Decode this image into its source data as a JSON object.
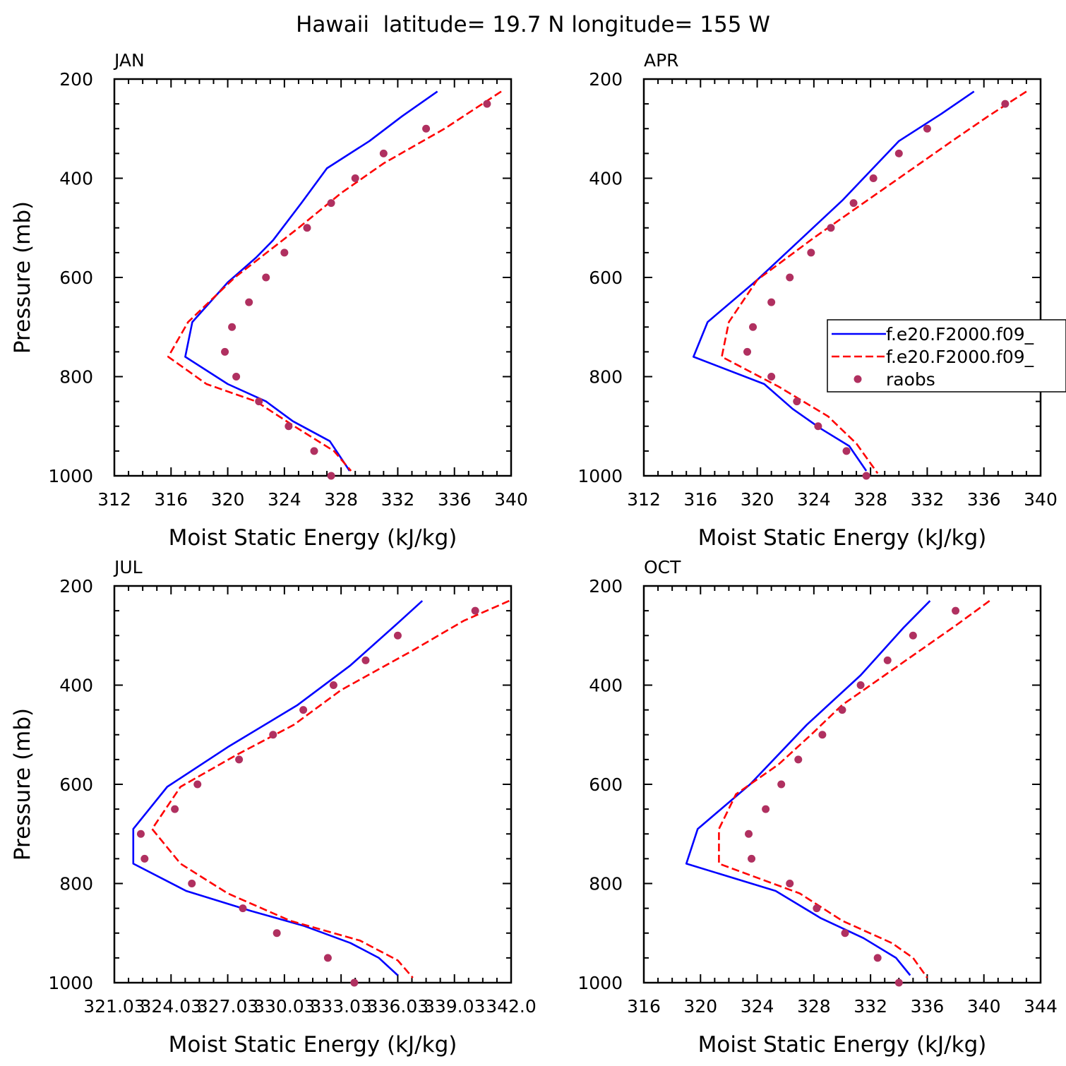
{
  "figure": {
    "title": "Hawaii  latitude= 19.7 N longitude= 155 W"
  },
  "colors": {
    "model_solid": "#0000ff",
    "model_dashed": "#ff0000",
    "raobs": "#b03060",
    "axes": "#000000"
  },
  "legend": {
    "entries": [
      {
        "label": "f.e20.F2000.f09_",
        "style": "solid",
        "color": "#0000ff"
      },
      {
        "label": "f.e20.F2000.f09_",
        "style": "dashed",
        "color": "#ff0000"
      },
      {
        "label": "raobs",
        "style": "dot",
        "color": "#b03060"
      }
    ]
  },
  "chart_data": [
    {
      "type": "line",
      "panel": "JAN",
      "title": "JAN",
      "xlabel": "Moist Static Energy (kJ/kg)",
      "ylabel": "Pressure (mb)",
      "xlim": [
        312,
        340
      ],
      "ylim": [
        1000,
        200
      ],
      "y_inverted": true,
      "xticks": [
        312,
        316,
        320,
        324,
        328,
        332,
        336,
        340
      ],
      "xtick_labels": [
        "312",
        "316",
        "320",
        "324",
        "328",
        "332",
        "336",
        "340"
      ],
      "yticks": [
        200,
        400,
        600,
        800,
        1000
      ],
      "ytick_labels": [
        "200",
        "400",
        "600",
        "800",
        "1000"
      ],
      "series": [
        {
          "style": "solid",
          "color": "#0000ff",
          "points": [
            [
              334.8,
              225
            ],
            [
              332.3,
              275
            ],
            [
              330.0,
              325
            ],
            [
              327.0,
              380
            ],
            [
              325.2,
              450
            ],
            [
              323.2,
              525
            ],
            [
              322.0,
              560
            ],
            [
              320.0,
              610
            ],
            [
              317.5,
              690
            ],
            [
              317.0,
              760
            ],
            [
              320.0,
              815
            ],
            [
              322.7,
              850
            ],
            [
              324.6,
              890
            ],
            [
              327.2,
              930
            ],
            [
              328.6,
              990
            ]
          ]
        },
        {
          "style": "dashed",
          "color": "#ff0000",
          "points": [
            [
              339.3,
              225
            ],
            [
              335.3,
              300
            ],
            [
              331.0,
              370
            ],
            [
              328.0,
              430
            ],
            [
              325.0,
              500
            ],
            [
              320.5,
              600
            ],
            [
              317.2,
              690
            ],
            [
              315.8,
              760
            ],
            [
              318.5,
              815
            ],
            [
              322.0,
              850
            ],
            [
              324.7,
              900
            ],
            [
              327.5,
              950
            ],
            [
              328.7,
              990
            ]
          ]
        },
        {
          "style": "dot",
          "color": "#b03060",
          "points": [
            [
              338.3,
              250
            ],
            [
              334.0,
              300
            ],
            [
              331.0,
              350
            ],
            [
              329.0,
              400
            ],
            [
              327.3,
              450
            ],
            [
              325.6,
              500
            ],
            [
              324.0,
              550
            ],
            [
              322.7,
              600
            ],
            [
              321.5,
              650
            ],
            [
              320.3,
              700
            ],
            [
              319.8,
              750
            ],
            [
              320.6,
              800
            ],
            [
              322.2,
              850
            ],
            [
              324.3,
              900
            ],
            [
              326.1,
              950
            ],
            [
              327.3,
              1000
            ]
          ]
        }
      ]
    },
    {
      "type": "line",
      "panel": "APR",
      "title": "APR",
      "xlabel": "Moist Static Energy (kJ/kg)",
      "ylabel": "",
      "xlim": [
        312,
        340
      ],
      "ylim": [
        1000,
        200
      ],
      "y_inverted": true,
      "xticks": [
        312,
        316,
        320,
        324,
        328,
        332,
        336,
        340
      ],
      "xtick_labels": [
        "312",
        "316",
        "320",
        "324",
        "328",
        "332",
        "336",
        "340"
      ],
      "yticks": [
        200,
        400,
        600,
        800,
        1000
      ],
      "ytick_labels": [
        "200",
        "400",
        "600",
        "800",
        "1000"
      ],
      "series": [
        {
          "style": "solid",
          "color": "#0000ff",
          "points": [
            [
              335.3,
              225
            ],
            [
              333.0,
              270
            ],
            [
              330.0,
              325
            ],
            [
              328.0,
              385
            ],
            [
              326.0,
              445
            ],
            [
              323.0,
              525
            ],
            [
              320.0,
              605
            ],
            [
              316.5,
              690
            ],
            [
              315.5,
              760
            ],
            [
              320.5,
              815
            ],
            [
              322.5,
              865
            ],
            [
              324.5,
              905
            ],
            [
              326.5,
              940
            ],
            [
              327.7,
              990
            ]
          ]
        },
        {
          "style": "dashed",
          "color": "#ff0000",
          "points": [
            [
              339.0,
              225
            ],
            [
              336.3,
              275
            ],
            [
              334.0,
              320
            ],
            [
              331.0,
              380
            ],
            [
              328.0,
              440
            ],
            [
              324.0,
              520
            ],
            [
              320.0,
              605
            ],
            [
              318.0,
              690
            ],
            [
              317.5,
              760
            ],
            [
              321.5,
              820
            ],
            [
              325.0,
              880
            ],
            [
              327.0,
              935
            ],
            [
              328.5,
              995
            ]
          ]
        },
        {
          "style": "dot",
          "color": "#b03060",
          "points": [
            [
              337.5,
              250
            ],
            [
              332.0,
              300
            ],
            [
              330.0,
              350
            ],
            [
              328.2,
              400
            ],
            [
              326.8,
              450
            ],
            [
              325.2,
              500
            ],
            [
              323.8,
              550
            ],
            [
              322.3,
              600
            ],
            [
              321.0,
              650
            ],
            [
              319.7,
              700
            ],
            [
              319.3,
              750
            ],
            [
              321.0,
              800
            ],
            [
              322.8,
              850
            ],
            [
              324.3,
              900
            ],
            [
              326.3,
              950
            ],
            [
              327.7,
              1000
            ]
          ]
        }
      ]
    },
    {
      "type": "line",
      "panel": "JUL",
      "title": "JUL",
      "xlabel": "Moist Static Energy (kJ/kg)",
      "ylabel": "Pressure (mb)",
      "xlim": [
        321.0,
        342.0
      ],
      "ylim": [
        1000,
        200
      ],
      "y_inverted": true,
      "xticks": [
        321.0,
        324.0,
        327.0,
        330.0,
        333.0,
        336.0,
        339.0,
        342.0
      ],
      "xtick_labels": [
        "321.03",
        "324.03",
        "327.03",
        "330.03",
        "333.03",
        "336.03",
        "339.03",
        "342.0"
      ],
      "yticks": [
        200,
        400,
        600,
        800,
        1000
      ],
      "ytick_labels": [
        "200",
        "400",
        "600",
        "800",
        "1000"
      ],
      "series": [
        {
          "style": "solid",
          "color": "#0000ff",
          "points": [
            [
              337.3,
              230
            ],
            [
              336.0,
              275
            ],
            [
              333.5,
              360
            ],
            [
              330.7,
              440
            ],
            [
              327.0,
              525
            ],
            [
              323.8,
              605
            ],
            [
              322.0,
              690
            ],
            [
              322.0,
              760
            ],
            [
              324.8,
              815
            ],
            [
              328.2,
              855
            ],
            [
              331.0,
              885
            ],
            [
              333.5,
              920
            ],
            [
              335.0,
              950
            ],
            [
              336.0,
              985
            ]
          ]
        },
        {
          "style": "dashed",
          "color": "#ff0000",
          "points": [
            [
              341.9,
              230
            ],
            [
              339.5,
              270
            ],
            [
              336.8,
              330
            ],
            [
              333.0,
              410
            ],
            [
              330.5,
              480
            ],
            [
              327.5,
              540
            ],
            [
              324.5,
              605
            ],
            [
              323.0,
              690
            ],
            [
              324.5,
              760
            ],
            [
              327.0,
              820
            ],
            [
              330.3,
              875
            ],
            [
              334.0,
              915
            ],
            [
              336.0,
              955
            ],
            [
              336.8,
              990
            ]
          ]
        },
        {
          "style": "dot",
          "color": "#b03060",
          "points": [
            [
              340.1,
              250
            ],
            [
              336.0,
              300
            ],
            [
              334.3,
              350
            ],
            [
              332.6,
              400
            ],
            [
              331.0,
              450
            ],
            [
              329.4,
              500
            ],
            [
              327.6,
              550
            ],
            [
              325.4,
              600
            ],
            [
              324.2,
              650
            ],
            [
              322.4,
              700
            ],
            [
              322.6,
              750
            ],
            [
              325.1,
              800
            ],
            [
              327.8,
              850
            ],
            [
              329.6,
              900
            ],
            [
              332.3,
              950
            ],
            [
              333.7,
              1000
            ]
          ]
        }
      ]
    },
    {
      "type": "line",
      "panel": "OCT",
      "title": "OCT",
      "xlabel": "Moist Static Energy (kJ/kg)",
      "ylabel": "",
      "xlim": [
        316,
        344
      ],
      "ylim": [
        1000,
        200
      ],
      "y_inverted": true,
      "xticks": [
        316,
        320,
        324,
        328,
        332,
        336,
        340,
        344
      ],
      "xtick_labels": [
        "316",
        "320",
        "324",
        "328",
        "332",
        "336",
        "340",
        "344"
      ],
      "yticks": [
        200,
        400,
        600,
        800,
        1000
      ],
      "ytick_labels": [
        "200",
        "400",
        "600",
        "800",
        "1000"
      ],
      "series": [
        {
          "style": "solid",
          "color": "#0000ff",
          "points": [
            [
              336.2,
              230
            ],
            [
              334.3,
              285
            ],
            [
              331.3,
              380
            ],
            [
              327.5,
              480
            ],
            [
              326.0,
              525
            ],
            [
              323.5,
              600
            ],
            [
              319.8,
              690
            ],
            [
              319.0,
              760
            ],
            [
              325.3,
              815
            ],
            [
              328.5,
              870
            ],
            [
              331.5,
              910
            ],
            [
              333.8,
              950
            ],
            [
              334.8,
              985
            ]
          ]
        },
        {
          "style": "dashed",
          "color": "#ff0000",
          "points": [
            [
              340.4,
              230
            ],
            [
              338.0,
              280
            ],
            [
              335.5,
              330
            ],
            [
              333.0,
              380
            ],
            [
              330.0,
              440
            ],
            [
              327.8,
              500
            ],
            [
              325.5,
              560
            ],
            [
              322.5,
              620
            ],
            [
              321.3,
              690
            ],
            [
              321.3,
              760
            ],
            [
              327.0,
              820
            ],
            [
              330.0,
              875
            ],
            [
              333.5,
              920
            ],
            [
              335.0,
              950
            ],
            [
              336.0,
              990
            ]
          ]
        },
        {
          "style": "dot",
          "color": "#b03060",
          "points": [
            [
              338.0,
              250
            ],
            [
              335.0,
              300
            ],
            [
              333.2,
              350
            ],
            [
              331.3,
              400
            ],
            [
              330.0,
              450
            ],
            [
              328.6,
              500
            ],
            [
              326.9,
              550
            ],
            [
              325.7,
              600
            ],
            [
              324.6,
              650
            ],
            [
              323.4,
              700
            ],
            [
              323.6,
              750
            ],
            [
              326.3,
              800
            ],
            [
              328.2,
              850
            ],
            [
              330.2,
              900
            ],
            [
              332.5,
              950
            ],
            [
              334.0,
              1000
            ]
          ]
        }
      ]
    }
  ]
}
